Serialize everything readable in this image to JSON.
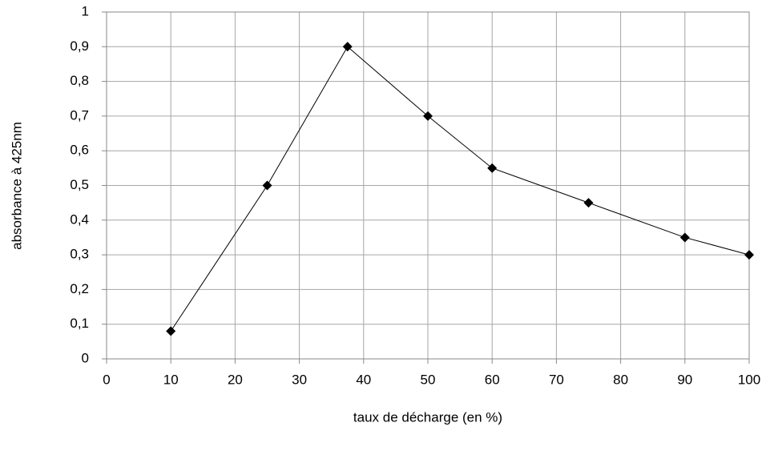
{
  "chart_data": {
    "type": "line",
    "x_label": "taux de décharge (en %)",
    "y_label": "absorbance à 425nm",
    "x": [
      10,
      25,
      37.5,
      50,
      60,
      75,
      90,
      100
    ],
    "series": [
      {
        "color": "#000000",
        "values": [
          0.08,
          0.5,
          0.9,
          0.7,
          0.55,
          0.45,
          0.35,
          0.3
        ]
      }
    ],
    "xlim": [
      0,
      100
    ],
    "xticks": [
      0,
      10,
      20,
      30,
      40,
      50,
      60,
      70,
      80,
      90,
      100
    ],
    "ylim": [
      0,
      1
    ],
    "yticks": [
      0,
      {
        "value": 0.1,
        "label": "0,1"
      },
      {
        "value": 0.2,
        "label": "0,2"
      },
      {
        "value": 0.3,
        "label": "0,3"
      },
      {
        "value": 0.4,
        "label": "0,4"
      },
      {
        "value": 0.5,
        "label": "0,5"
      },
      {
        "value": 0.6,
        "label": "0,6"
      },
      {
        "value": 0.7,
        "label": "0,7"
      },
      {
        "value": 0.8,
        "label": "0,8"
      },
      {
        "value": 0.9,
        "label": "0,9"
      },
      1
    ],
    "grid": true
  }
}
